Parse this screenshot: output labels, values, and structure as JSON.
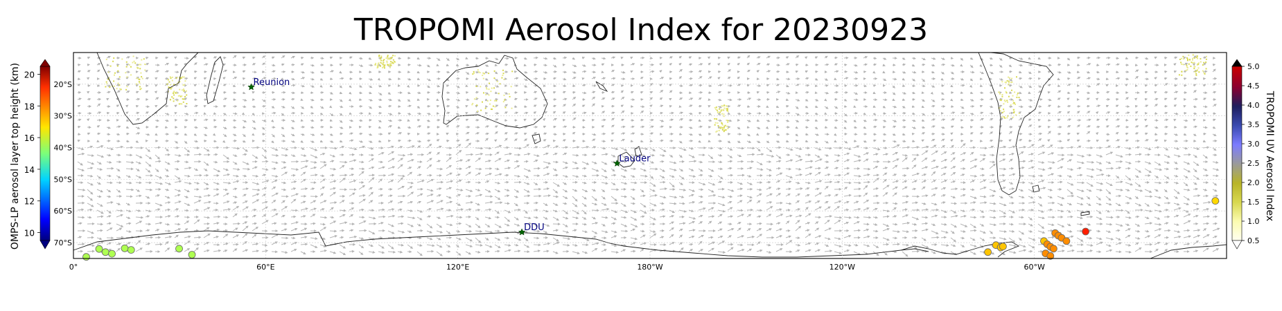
{
  "title": "TROPOMI Aerosol Index for 20230923",
  "map": {
    "lon_range": [
      0,
      360
    ],
    "lat_range": [
      -75,
      -10
    ],
    "lon_ticks": [
      {
        "lon": 0,
        "label": "0°"
      },
      {
        "lon": 60,
        "label": "60°E"
      },
      {
        "lon": 120,
        "label": "120°E"
      },
      {
        "lon": 180,
        "label": "180°W"
      },
      {
        "lon": 240,
        "label": "120°W"
      },
      {
        "lon": 300,
        "label": "60°W"
      }
    ],
    "lat_ticks": [
      {
        "lat": -20,
        "label": "20°S"
      },
      {
        "lat": -30,
        "label": "30°S"
      },
      {
        "lat": -40,
        "label": "40°S"
      },
      {
        "lat": -50,
        "label": "50°S"
      },
      {
        "lat": -60,
        "label": "60°S"
      },
      {
        "lat": -70,
        "label": "70°S"
      }
    ],
    "gridlines": true,
    "wind_vectors": "gray arrows",
    "sites": [
      {
        "name": "Reunion",
        "lon": 55.5,
        "lat": -20.9
      },
      {
        "name": "Lauder",
        "lon": 169.7,
        "lat": -45.0
      },
      {
        "name": "DDU",
        "lon": 140.0,
        "lat": -66.7
      }
    ],
    "omps_points": [
      {
        "lon": 4,
        "lat": -74.5,
        "height_km": 15.5
      },
      {
        "lon": 8,
        "lat": -72.0,
        "height_km": 15.5
      },
      {
        "lon": 10,
        "lat": -73.0,
        "height_km": 15.5
      },
      {
        "lon": 12,
        "lat": -73.5,
        "height_km": 15.5
      },
      {
        "lon": 16,
        "lat": -71.8,
        "height_km": 15.5
      },
      {
        "lon": 18,
        "lat": -72.3,
        "height_km": 15.5
      },
      {
        "lon": 33,
        "lat": -71.9,
        "height_km": 15.5
      },
      {
        "lon": 37,
        "lat": -73.8,
        "height_km": 15.5
      },
      {
        "lon": 285.5,
        "lat": -73.0,
        "height_km": 17.0
      },
      {
        "lon": 288,
        "lat": -70.8,
        "height_km": 17.0
      },
      {
        "lon": 289.5,
        "lat": -71.5,
        "height_km": 17.0
      },
      {
        "lon": 290.2,
        "lat": -71.2,
        "height_km": 17.0
      },
      {
        "lon": 303,
        "lat": -69.5,
        "height_km": 17.0
      },
      {
        "lon": 304,
        "lat": -70.5,
        "height_km": 17.6
      },
      {
        "lon": 305,
        "lat": -71.3,
        "height_km": 17.6
      },
      {
        "lon": 306,
        "lat": -71.9,
        "height_km": 17.6
      },
      {
        "lon": 306.5,
        "lat": -67.0,
        "height_km": 17.6
      },
      {
        "lon": 307.5,
        "lat": -67.8,
        "height_km": 17.6
      },
      {
        "lon": 308.5,
        "lat": -68.5,
        "height_km": 17.6
      },
      {
        "lon": 310,
        "lat": -69.5,
        "height_km": 17.6
      },
      {
        "lon": 303.5,
        "lat": -73.4,
        "height_km": 17.6
      },
      {
        "lon": 305,
        "lat": -74.2,
        "height_km": 17.6
      },
      {
        "lon": 316,
        "lat": -66.5,
        "height_km": 18.8
      },
      {
        "lon": 356.5,
        "lat": -56.8,
        "height_km": 16.8
      }
    ]
  },
  "left_colorbar": {
    "label": "OMPS-LP aerosol layer top height (km)",
    "range": [
      9.5,
      20.5
    ],
    "ticks": [
      "10",
      "12",
      "14",
      "16",
      "18",
      "20"
    ],
    "tick_values": [
      10,
      12,
      14,
      16,
      18,
      20
    ],
    "colormap": "jet"
  },
  "right_colorbar": {
    "label": "TROPOMI UV Aerosol Index",
    "range": [
      0.5,
      5.0
    ],
    "ticks": [
      "0.5",
      "1.0",
      "1.5",
      "2.0",
      "2.5",
      "3.0",
      "3.5",
      "4.0",
      "4.5",
      "5.0"
    ],
    "tick_values": [
      0.5,
      1.0,
      1.5,
      2.0,
      2.5,
      3.0,
      3.5,
      4.0,
      4.5,
      5.0
    ],
    "colors": [
      "#fffff0",
      "#fbfbb0",
      "#d8d850",
      "#b8b428",
      "#9a9a9a",
      "#7c7cff",
      "#3a4ab0",
      "#1e1e5e",
      "#8a0030",
      "#cc0000"
    ]
  }
}
